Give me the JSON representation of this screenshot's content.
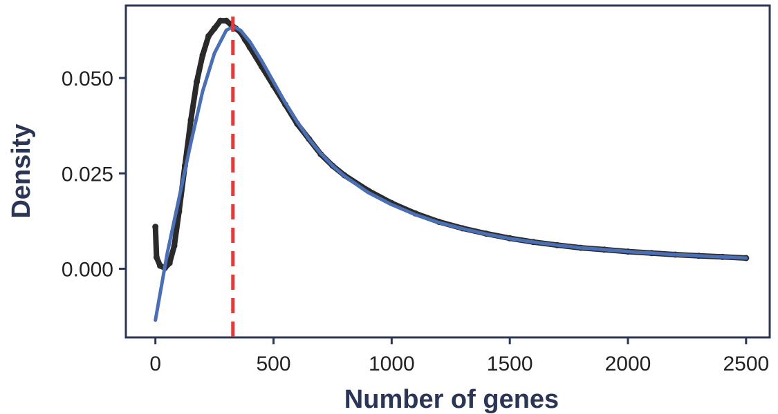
{
  "chart_data": {
    "type": "scatter",
    "title": "",
    "xlabel": "Number of genes",
    "ylabel": "Density",
    "xlim": [
      -125,
      2600
    ],
    "ylim": [
      -0.018,
      0.069
    ],
    "x_ticks": [
      0,
      500,
      1000,
      1500,
      2000,
      2500
    ],
    "x_tick_labels": [
      "0",
      "500",
      "1000",
      "1500",
      "2000",
      "2500"
    ],
    "y_ticks": [
      0.0,
      0.025,
      0.05
    ],
    "y_tick_labels": [
      "0.000",
      "0.025",
      "0.050"
    ],
    "grid": false,
    "legend": "none",
    "series": [
      {
        "role": "observed density (points)",
        "color": "#2a2a2a",
        "x": [
          0,
          5,
          20,
          40,
          60,
          80,
          100,
          125,
          150,
          175,
          200,
          225,
          250,
          275,
          300,
          320,
          340,
          360,
          380,
          400,
          450,
          500,
          550,
          600,
          650,
          700,
          750,
          800,
          900,
          1000,
          1100,
          1200,
          1300,
          1400,
          1500,
          1600,
          1700,
          1800,
          1900,
          2000,
          2100,
          2200,
          2300,
          2400,
          2500
        ],
        "y": [
          0.011,
          0.003,
          0.0008,
          0.0002,
          0.0015,
          0.006,
          0.015,
          0.027,
          0.039,
          0.049,
          0.056,
          0.061,
          0.063,
          0.065,
          0.065,
          0.064,
          0.063,
          0.062,
          0.06,
          0.058,
          0.053,
          0.048,
          0.043,
          0.038,
          0.034,
          0.03,
          0.027,
          0.0245,
          0.0205,
          0.0172,
          0.0145,
          0.0123,
          0.0106,
          0.0092,
          0.008,
          0.007,
          0.0062,
          0.0055,
          0.005,
          0.0045,
          0.0041,
          0.0037,
          0.0034,
          0.0031,
          0.0028
        ]
      },
      {
        "role": "fitted curve",
        "color": "#4a6fb5",
        "x": [
          0,
          50,
          100,
          150,
          200,
          250,
          300,
          330,
          360,
          400,
          450,
          500,
          550,
          600,
          650,
          700,
          750,
          800,
          900,
          1000,
          1100,
          1200,
          1300,
          1400,
          1500,
          1600,
          1700,
          1800,
          1900,
          2000,
          2100,
          2200,
          2300,
          2400,
          2500
        ],
        "y": [
          -0.0135,
          0.004,
          0.0185,
          0.033,
          0.0465,
          0.0565,
          0.0625,
          0.0635,
          0.0625,
          0.0595,
          0.0545,
          0.049,
          0.0435,
          0.0385,
          0.034,
          0.0302,
          0.027,
          0.0243,
          0.02,
          0.0168,
          0.0142,
          0.0121,
          0.0105,
          0.0091,
          0.0079,
          0.007,
          0.0062,
          0.0055,
          0.005,
          0.0045,
          0.0041,
          0.0037,
          0.0034,
          0.0031,
          0.0028
        ]
      }
    ],
    "reference_lines": [
      {
        "orientation": "vertical",
        "x": 328,
        "color": "#e03a3a",
        "style": "dashed"
      }
    ]
  }
}
